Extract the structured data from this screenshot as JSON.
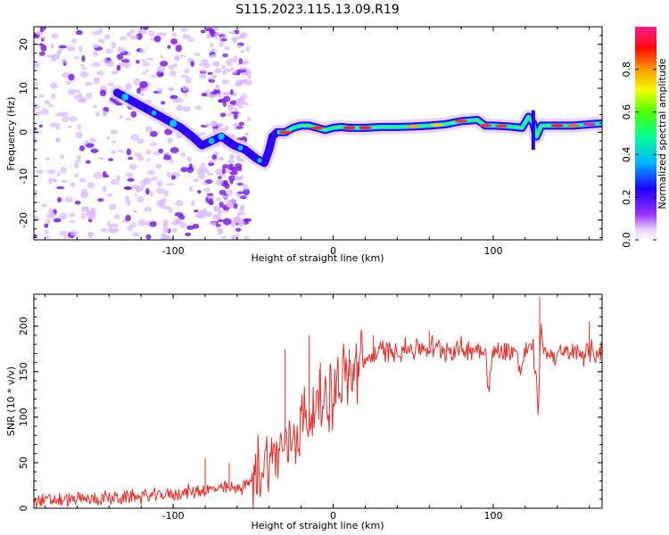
{
  "figure": {
    "title": "S115.2023.115.13.09.R19"
  },
  "chart_data": [
    {
      "type": "heatmap",
      "panel": "spectrogram",
      "xlabel": "Height of straight line (km)",
      "ylabel": "Frequency (Hz)",
      "xlim": [
        -187,
        168
      ],
      "ylim": [
        -24.5,
        24
      ],
      "x_ticks": [
        -100,
        0,
        100
      ],
      "y_ticks": [
        -20,
        -10,
        0,
        10,
        20
      ],
      "colorbar": {
        "label": "Normalized spectral amplitude",
        "range": [
          0,
          1
        ],
        "ticks": [
          0.0,
          0.2,
          0.4,
          0.6,
          0.8
        ],
        "colormap": [
          "#ffffff",
          "#d9b8ff",
          "#8a2be2",
          "#2200ff",
          "#00c8ff",
          "#00ff80",
          "#7cfc00",
          "#ffff00",
          "#ff8c00",
          "#ff0000",
          "#ff1493"
        ]
      },
      "ridge": {
        "x": [
          -135,
          -125,
          -115,
          -105,
          -95,
          -88,
          -82,
          -70,
          -62,
          -55,
          -48,
          -43,
          -40,
          -38,
          -35,
          -30,
          -25,
          -20,
          -15,
          -10,
          -5,
          0,
          5,
          10,
          20,
          30,
          40,
          50,
          60,
          70,
          80,
          90,
          95,
          100,
          110,
          118,
          122,
          125,
          127,
          130,
          140,
          150,
          160,
          168
        ],
        "y": [
          9,
          7,
          5,
          3,
          1,
          -1,
          -3,
          -1,
          -3,
          -4,
          -6,
          -7,
          -4,
          -1,
          0,
          0,
          1,
          1.5,
          1.5,
          1,
          0.5,
          1,
          1.2,
          1,
          1,
          1.2,
          1.2,
          1.3,
          1.5,
          1.8,
          2.5,
          2.8,
          1.5,
          1.5,
          1.3,
          1,
          3.5,
          2,
          -1,
          1.5,
          1.5,
          1.5,
          1.8,
          2
        ]
      }
    },
    {
      "type": "line",
      "panel": "snr",
      "xlabel": "Height of straight line (km)",
      "ylabel": "SNR (10 * v/v)",
      "xlim": [
        -187,
        168
      ],
      "ylim": [
        0,
        235
      ],
      "x_ticks": [
        -100,
        0,
        100
      ],
      "y_ticks": [
        0,
        50,
        100,
        150,
        200
      ],
      "series": [
        {
          "color": "#ee2a24",
          "x": [
            -187,
            -170,
            -150,
            -130,
            -110,
            -100,
            -90,
            -80,
            -70,
            -60,
            -55,
            -50,
            -45,
            -40,
            -35,
            -30,
            -25,
            -20,
            -15,
            -10,
            -5,
            0,
            5,
            10,
            15,
            20,
            25,
            30,
            35,
            40,
            50,
            60,
            70,
            80,
            90,
            95,
            97,
            100,
            110,
            115,
            116,
            120,
            125,
            128,
            130,
            132,
            140,
            150,
            160,
            168
          ],
          "y": [
            8,
            9,
            10,
            12,
            14,
            16,
            18,
            20,
            21,
            22,
            25,
            32,
            45,
            55,
            60,
            70,
            80,
            95,
            100,
            115,
            122,
            128,
            140,
            145,
            155,
            162,
            168,
            172,
            173,
            174,
            175,
            176,
            175,
            174,
            176,
            175,
            130,
            172,
            174,
            172,
            145,
            172,
            178,
            110,
            200,
            170,
            168,
            170,
            171,
            172
          ]
        }
      ]
    }
  ]
}
